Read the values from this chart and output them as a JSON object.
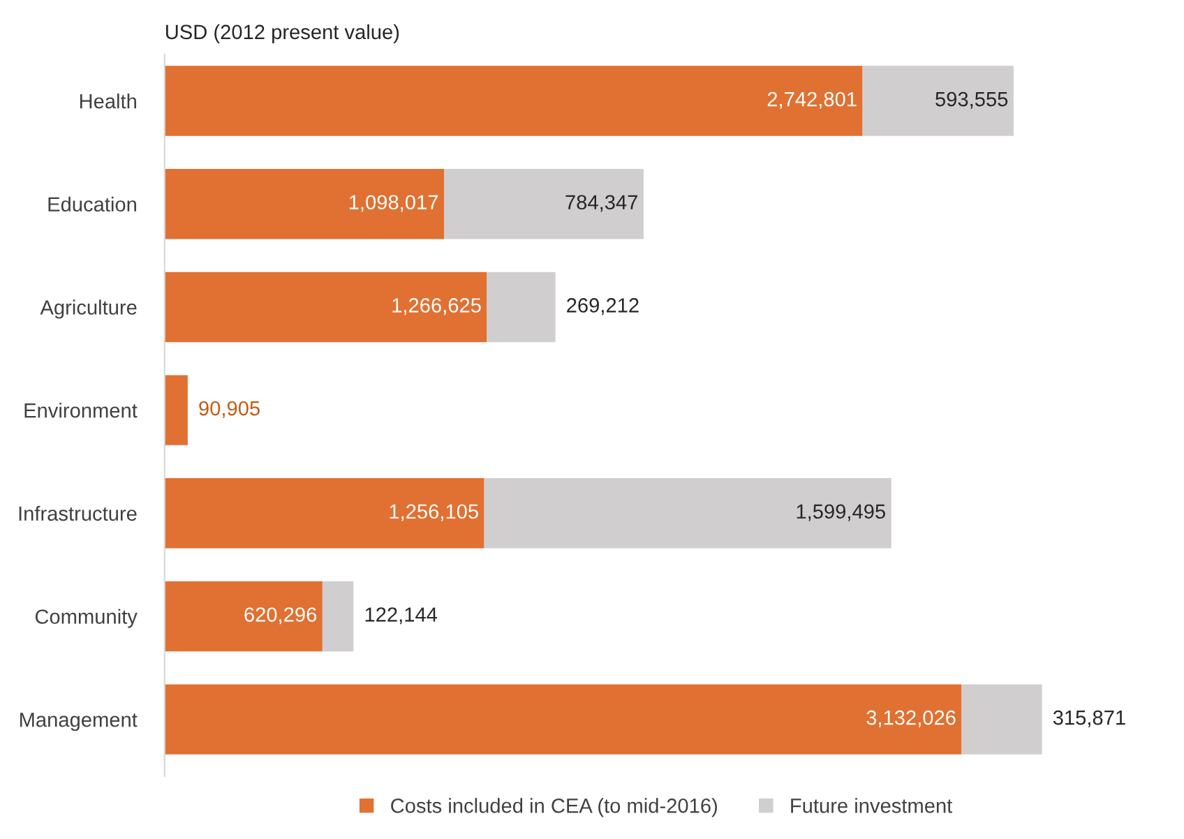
{
  "chart_data": {
    "type": "bar",
    "orientation": "horizontal",
    "stacked": true,
    "title": "USD (2012 present value)",
    "categories": [
      "Health",
      "Education",
      "Agriculture",
      "Environment",
      "Infrastructure",
      "Community",
      "Management"
    ],
    "series": [
      {
        "name": "Costs included in CEA (to mid-2016)",
        "color": "#e07132",
        "values": [
          2742801,
          1098017,
          1266625,
          90905,
          1256105,
          620296,
          3132026
        ],
        "value_labels": [
          "2,742,801",
          "1,098,017",
          "1,266,625",
          "90,905",
          "1,256,105",
          "620,296",
          "3,132,026"
        ]
      },
      {
        "name": "Future investment",
        "color": "#d0cece",
        "values": [
          593555,
          784347,
          269212,
          null,
          1599495,
          122144,
          315871
        ],
        "value_labels": [
          "593,555",
          "784,347",
          "269,212",
          null,
          "1,599,495",
          "122,144",
          "315,871"
        ]
      }
    ],
    "legend": "bottom",
    "grid": false
  }
}
